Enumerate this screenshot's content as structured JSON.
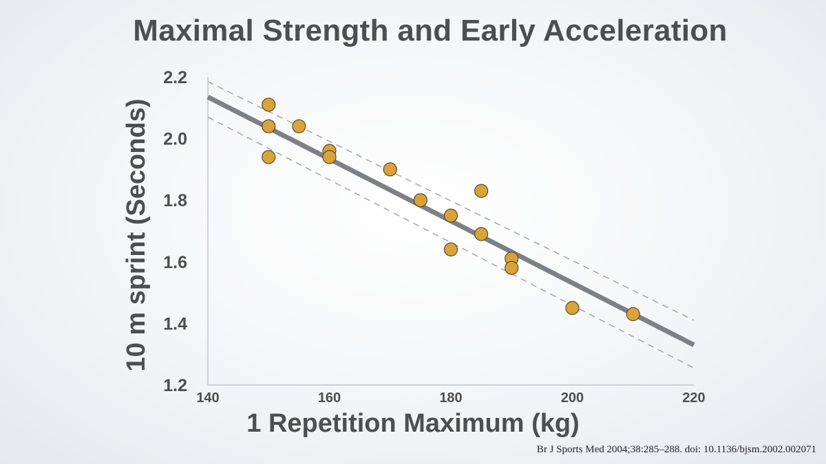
{
  "chart_data": {
    "type": "scatter",
    "title": "Maximal Strength and Early Acceleration",
    "xlabel": "1 Repetition Maximum (kg)",
    "ylabel": "10 m sprint (Seconds)",
    "xlim": [
      140,
      220
    ],
    "ylim": [
      1.2,
      2.2
    ],
    "xticks": [
      "140",
      "160",
      "180",
      "200",
      "220"
    ],
    "yticks": [
      "1.2",
      "1.4",
      "1.6",
      "1.8",
      "2.0",
      "2.2"
    ],
    "grid": false,
    "legend": "none",
    "points": [
      {
        "x": 150,
        "y": 2.11
      },
      {
        "x": 150,
        "y": 2.04
      },
      {
        "x": 150,
        "y": 1.94
      },
      {
        "x": 155,
        "y": 2.04
      },
      {
        "x": 160,
        "y": 1.96
      },
      {
        "x": 160,
        "y": 1.94
      },
      {
        "x": 170,
        "y": 1.9
      },
      {
        "x": 175,
        "y": 1.8
      },
      {
        "x": 180,
        "y": 1.75
      },
      {
        "x": 180,
        "y": 1.64
      },
      {
        "x": 185,
        "y": 1.83
      },
      {
        "x": 185,
        "y": 1.69
      },
      {
        "x": 190,
        "y": 1.61
      },
      {
        "x": 190,
        "y": 1.58
      },
      {
        "x": 200,
        "y": 1.45
      },
      {
        "x": 210,
        "y": 1.43
      }
    ],
    "trendline": {
      "x": [
        140,
        220
      ],
      "y": [
        2.135,
        1.33
      ]
    },
    "confidence_band": {
      "upper": {
        "x": [
          140,
          220
        ],
        "y": [
          2.185,
          1.41
        ]
      },
      "lower": {
        "x": [
          140,
          220
        ],
        "y": [
          2.07,
          1.255
        ]
      }
    },
    "colors": {
      "point_fill": "#d9a33a",
      "point_stroke": "#5a4a2a",
      "trendline": "#7d8085",
      "band": "#aaaaaa",
      "axis": "#cfd2d6",
      "text": "#4e4e4e"
    }
  },
  "citation": "Br J Sports Med 2004;38:285–288. doi: 10.1136/bjsm.2002.002071"
}
